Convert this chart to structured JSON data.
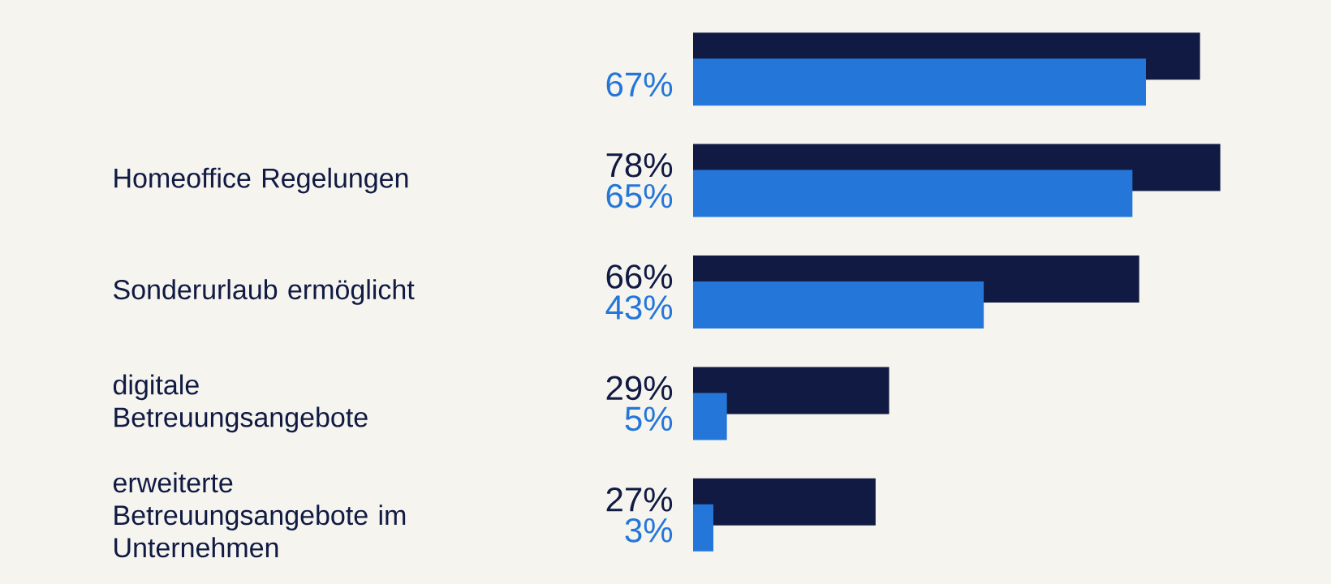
{
  "chart_data": {
    "type": "bar",
    "orientation": "horizontal",
    "categories": [
      null,
      "Homeoffice Regelungen",
      "Sonderurlaub ermöglicht",
      "digitale Betreuungsangebote",
      "erweiterte Betreuungsangebote im Unternehmen"
    ],
    "series": [
      {
        "color": "#111a42",
        "values": [
          75,
          78,
          66,
          29,
          27
        ],
        "value_labels": [
          null,
          "78%",
          "66%",
          "29%",
          "27%"
        ]
      },
      {
        "color": "#2477d9",
        "values": [
          67,
          65,
          43,
          5,
          3
        ],
        "value_labels": [
          "67%",
          "65%",
          "43%",
          "5%",
          "3%"
        ]
      }
    ],
    "stacked": false
  }
}
